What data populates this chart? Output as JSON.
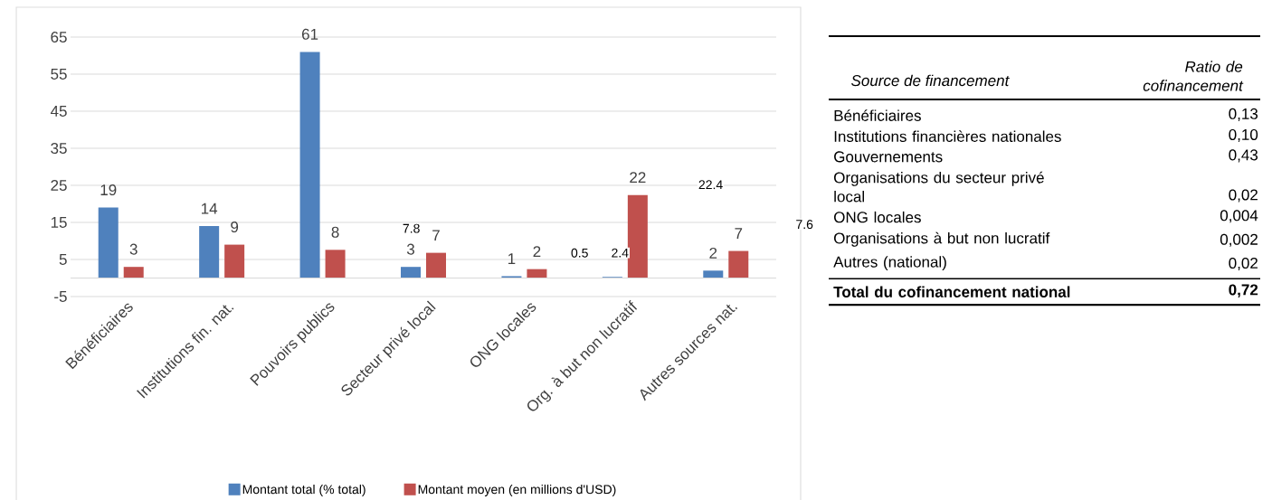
{
  "chart_data": [
    {
      "type": "bar",
      "categories": [
        "Bénéficiaires",
        "Institutions fin. nat.",
        "Pouvoirs publics",
        "Secteur privé local",
        "ONG locales",
        "Org. à but non lucratif",
        "Autres sources nat."
      ],
      "series": [
        {
          "name": "Montant total (% total)",
          "color": "#4f81bd",
          "values": [
            19,
            14,
            61,
            3,
            0.5,
            0.3,
            2
          ],
          "value_labels": [
            "19",
            "14",
            "61",
            "3",
            "1",
            null,
            "2"
          ]
        },
        {
          "name": "Montant moyen (en millions d'USD)",
          "color": "#c0504d",
          "values": [
            3,
            9,
            7.6,
            6.8,
            2.4,
            22.4,
            7.3
          ],
          "value_labels": [
            "3",
            "9",
            "8",
            "7",
            "2",
            "22",
            "7"
          ]
        }
      ],
      "ylim": [
        -5,
        65
      ],
      "yticks": [
        -5,
        5,
        15,
        25,
        35,
        45,
        55,
        65
      ],
      "grid": "y",
      "legend": "bottom",
      "ref_lines": [
        {
          "axis": "y",
          "value": 0,
          "color": "#d9d9d9"
        }
      ],
      "annotations": [
        "7.8",
        "0.5",
        "2.4",
        "22.4",
        "7.6"
      ]
    },
    {
      "type": "other",
      "xlabel": "Source de financement",
      "ylabel": "Ratio de cofinancement",
      "categories": [
        "Bénéficiaires",
        "Institutions financières nationales",
        "Gouvernements",
        "Organisations du secteur privé local",
        "ONG locales",
        "Organisations à but non lucratif",
        "Autres (national)",
        "Total du cofinancement national"
      ],
      "value_labels": [
        "0,13",
        "0,10",
        "0,43",
        "0,02",
        "0,004",
        "0,002",
        "0,02",
        "0,72"
      ]
    }
  ]
}
